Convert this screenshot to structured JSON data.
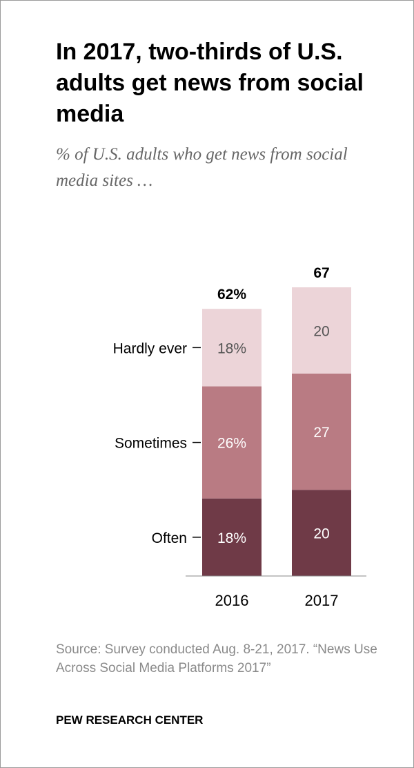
{
  "title": "In 2017, two-thirds of U.S. adults get news from social media",
  "subtitle": "% of U.S. adults who get news from social media sites …",
  "source": "Source: Survey conducted Aug. 8-21, 2017. “News Use Across Social Media Platforms 2017”",
  "footer": "PEW RESEARCH CENTER",
  "chart_data": {
    "type": "bar",
    "stacked": true,
    "categories": [
      "2016",
      "2017"
    ],
    "series": [
      {
        "name": "Often",
        "values": [
          18,
          20
        ],
        "color": "#6f3a47",
        "labels": [
          "18%",
          "20"
        ]
      },
      {
        "name": "Sometimes",
        "values": [
          26,
          27
        ],
        "color": "#b97b83",
        "labels": [
          "26%",
          "27"
        ]
      },
      {
        "name": "Hardly ever",
        "values": [
          18,
          20
        ],
        "color": "#ecd4d8",
        "labels": [
          "18%",
          "20"
        ]
      }
    ],
    "totals": [
      "62%",
      "67"
    ],
    "ylim": [
      0,
      67
    ],
    "grid": false,
    "legend": "left, inline with first bar"
  }
}
